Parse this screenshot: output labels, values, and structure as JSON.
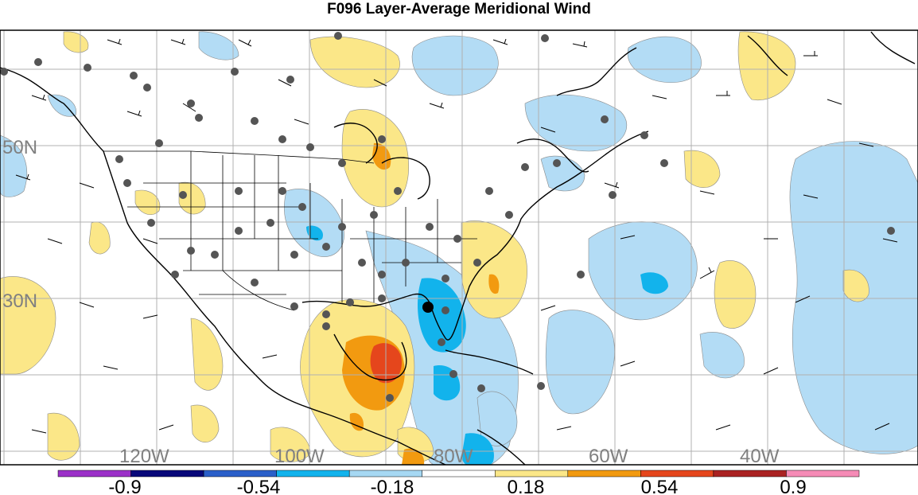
{
  "title": "F096 Layer-Average Meridional Wind",
  "map": {
    "lat_labels": [
      "50N",
      "30N"
    ],
    "lon_labels": [
      "120W",
      "100W",
      "80W",
      "60W",
      "40W"
    ]
  },
  "colorbar": {
    "labels": [
      "-0.9",
      "-0.54",
      "-0.18",
      "0.18",
      "0.54",
      "0.9"
    ],
    "colors": [
      "#9b30c8",
      "#08087a",
      "#2a5fc9",
      "#12b3ec",
      "#a6d8f3",
      "#ffffff",
      "#fbe788",
      "#f29a10",
      "#e5461c",
      "#aa2222",
      "#f58bb6"
    ]
  },
  "colors": {
    "light_blue": "#b3dcf5",
    "mid_blue": "#12b3ec",
    "light_yellow": "#fbe788",
    "orange": "#f29a10",
    "red_orange": "#e5461c",
    "station_dot": "#555555",
    "highlight_dot": "#000000",
    "gridline": "#b0b0b0"
  }
}
